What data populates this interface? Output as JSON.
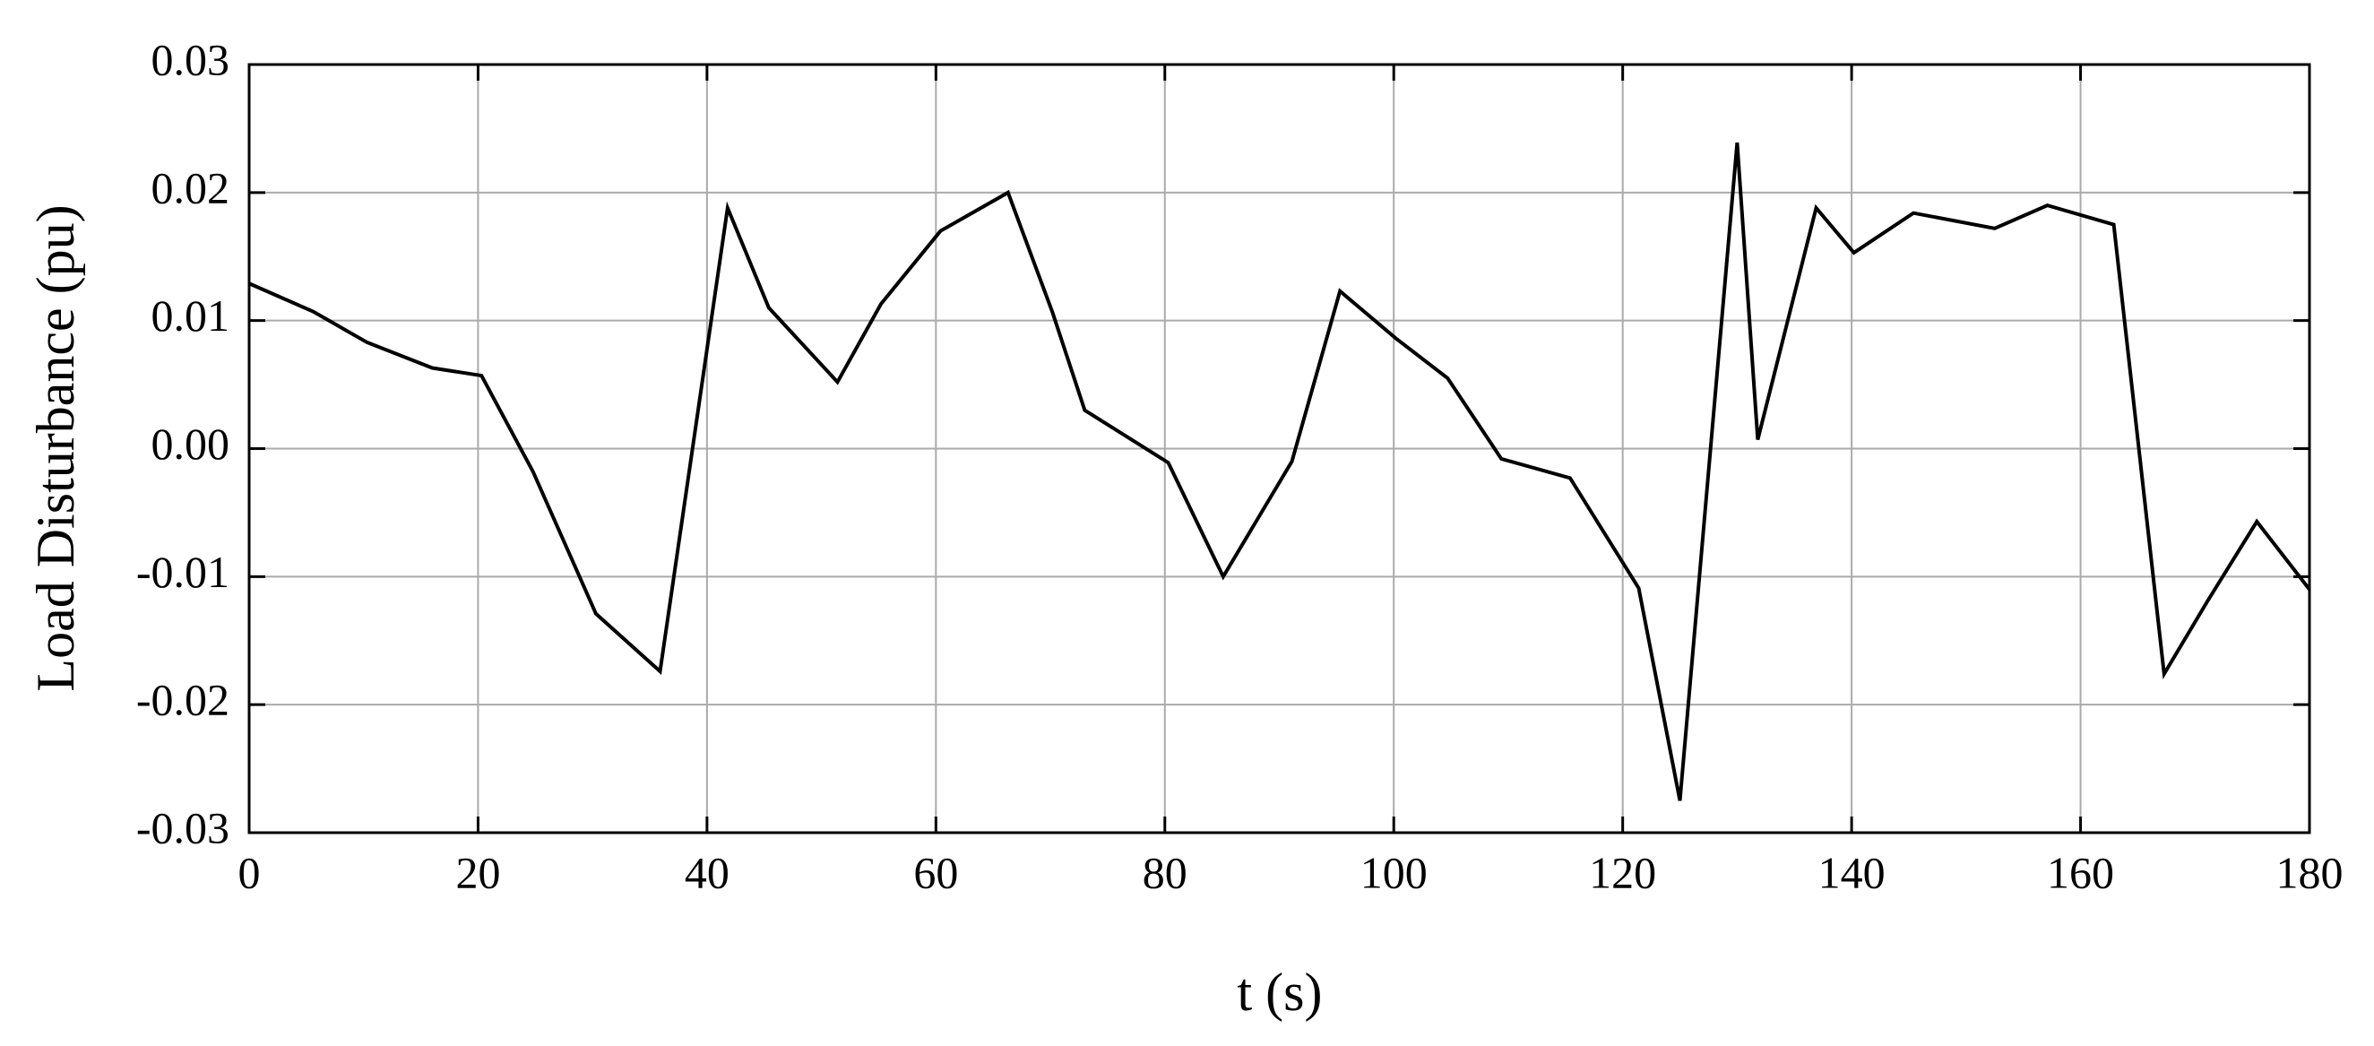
{
  "chart_data": {
    "type": "line",
    "x_label": "t (s)",
    "y_label": "Load Disturbance (pu)",
    "x": [
      0,
      5.6,
      10.3,
      16,
      20.3,
      24.8,
      30.3,
      35.9,
      41.8,
      45.4,
      51.4,
      55.2,
      60.4,
      66.3,
      70.2,
      73,
      80.3,
      85.1,
      91.1,
      95.3,
      100.2,
      104.7,
      109.4,
      115.4,
      121.4,
      125,
      130,
      131.8,
      136.9,
      140.2,
      145.4,
      152.5,
      157.1,
      162.9,
      167.3,
      171.1,
      175.4,
      180
    ],
    "series": [
      {
        "color": "#000000",
        "values": [
          0.0129,
          0.0107,
          0.0083,
          0.0063,
          0.0057,
          -0.0018,
          -0.0129,
          -0.0174,
          0.0188,
          0.011,
          0.0052,
          0.0113,
          0.017,
          0.02,
          0.0106,
          0.003,
          -0.0011,
          -0.01,
          -0.001,
          0.0123,
          0.0086,
          0.0055,
          -0.0008,
          -0.0023,
          -0.0109,
          -0.0275,
          0.0239,
          0.0007,
          0.0188,
          0.0153,
          0.0184,
          0.0172,
          0.019,
          0.0175,
          -0.0176,
          -0.0119,
          -0.0057,
          -0.011
        ]
      }
    ],
    "xlim": [
      0,
      180
    ],
    "xticks": [
      0,
      20,
      40,
      60,
      80,
      100,
      120,
      140,
      160,
      180
    ],
    "ylim": [
      -0.03,
      0.03
    ],
    "yticks": [
      -0.03,
      -0.02,
      -0.01,
      {
        "value": 0,
        "label": "0.00"
      },
      0.01,
      0.02,
      0.03
    ],
    "grid": true
  }
}
